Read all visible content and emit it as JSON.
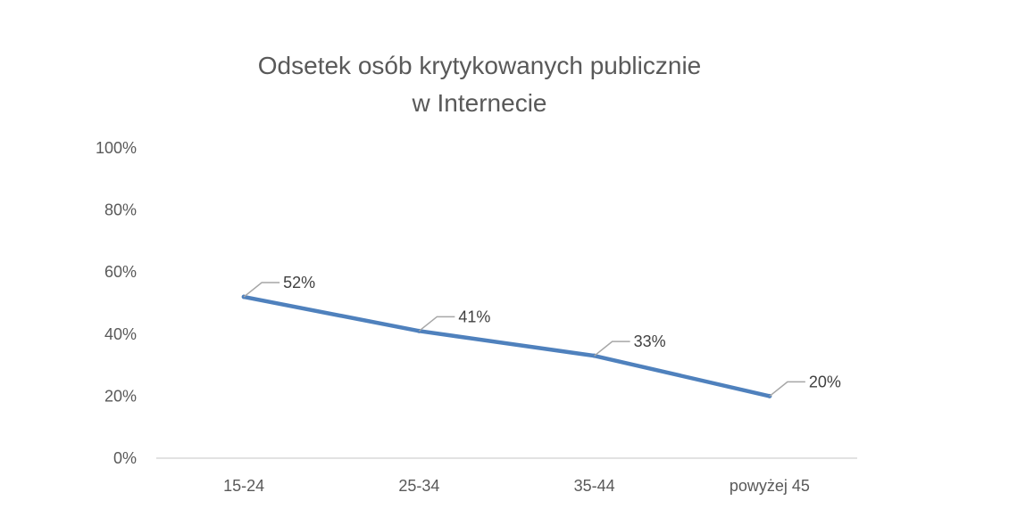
{
  "chart_data": {
    "type": "line",
    "title": "Odsetek osób krytykowanych publicznie",
    "subtitle": "w Internecie",
    "categories": [
      "15-24",
      "25-34",
      "35-44",
      "powyżej 45"
    ],
    "series": [
      {
        "values": [
          52,
          41,
          33,
          20
        ],
        "data_labels": [
          "52%",
          "41%",
          "33%",
          "20%"
        ]
      }
    ],
    "y_ticks": [
      0,
      20,
      40,
      60,
      80,
      100
    ],
    "y_tick_labels": [
      "0%",
      "20%",
      "40%",
      "60%",
      "80%",
      "100%"
    ],
    "ylim": [
      0,
      100
    ],
    "xlabel": "",
    "ylabel": "",
    "grid": false,
    "legend": "none",
    "colors": {
      "line": "#4f81bd",
      "leader": "#a6a6a6",
      "axis": "#d9d9d9",
      "text": "#595959"
    }
  }
}
